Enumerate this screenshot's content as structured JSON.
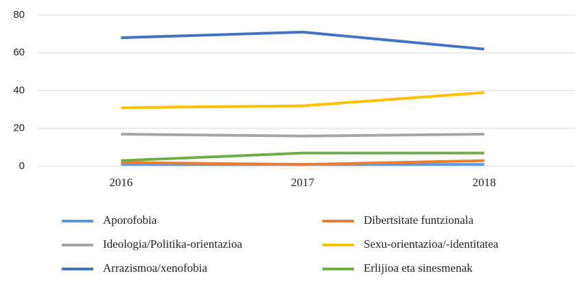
{
  "chart_data": {
    "type": "line",
    "categories": [
      "2016",
      "2017",
      "2018"
    ],
    "series": [
      {
        "name": "Aporofobia",
        "color": "#5b9bd5",
        "values": [
          1,
          1,
          1
        ]
      },
      {
        "name": "Dibertsitate funtzionala",
        "color": "#ed7d31",
        "values": [
          2,
          1,
          3
        ]
      },
      {
        "name": "Ideologia/Politika-orientazioa",
        "color": "#a5a5a5",
        "values": [
          17,
          16,
          17
        ]
      },
      {
        "name": "Sexu-orientazioa/-identitatea",
        "color": "#ffc000",
        "values": [
          31,
          32,
          39
        ]
      },
      {
        "name": "Arrazismoa/xenofobia",
        "color": "#4472c4",
        "values": [
          68,
          71,
          62
        ]
      },
      {
        "name": "Erlijioa eta sinesmenak",
        "color": "#70ad47",
        "values": [
          3,
          7,
          7
        ]
      }
    ],
    "ylim": [
      0,
      80
    ],
    "yticks": [
      0,
      20,
      40,
      60,
      80
    ],
    "grid": true,
    "legend": "bottom"
  }
}
